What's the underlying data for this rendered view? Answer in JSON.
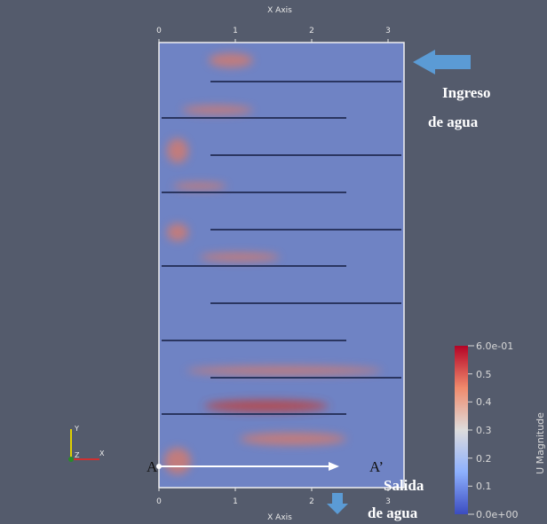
{
  "view": {
    "top_axis": {
      "title": "X Axis",
      "ticks": [
        "0",
        "1",
        "2",
        "3"
      ]
    },
    "bottom_axis": {
      "title": "X Axis",
      "ticks": [
        "0",
        "1",
        "2",
        "3"
      ]
    },
    "inlet_label": [
      "Ingreso",
      "de agua"
    ],
    "outlet_label": [
      "Salida",
      "de agua"
    ],
    "section": {
      "start": "A",
      "end": "A’"
    },
    "colorbar": {
      "title": "U Magnitude",
      "ticks": [
        "6.0e-01",
        "0.5",
        "0.4",
        "0.3",
        "0.2",
        "0.1",
        "0.0e+00"
      ]
    },
    "triad": {
      "y": "Y",
      "x": "X",
      "z": "Z"
    }
  }
}
